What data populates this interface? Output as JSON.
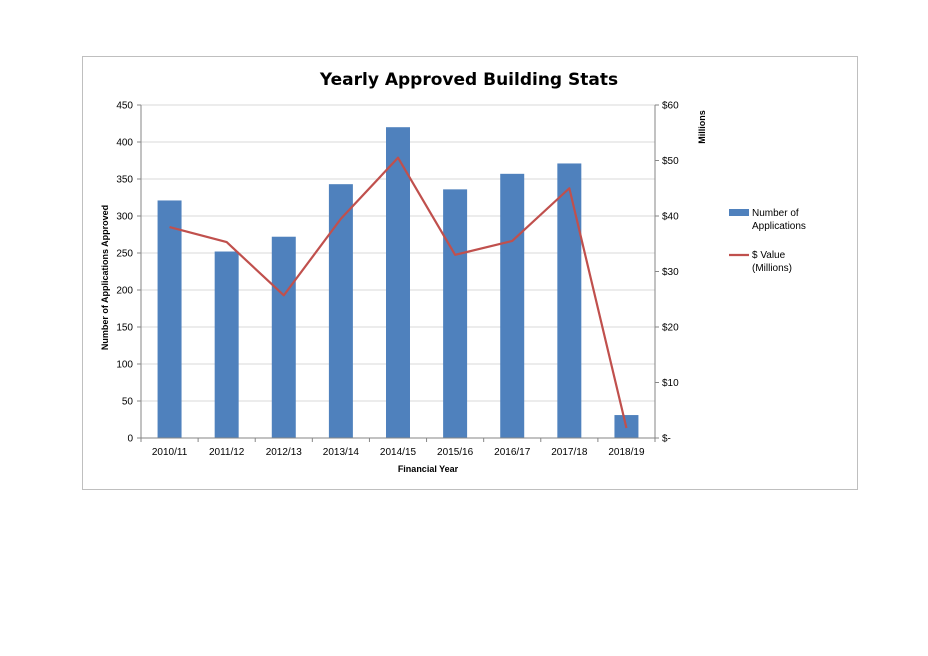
{
  "chart_data": {
    "type": "bar",
    "title": "Yearly Approved Building Stats",
    "xlabel": "Financial  Year",
    "ylabel": "Number of Applications Approved",
    "y2label": "Millions",
    "categories": [
      "2010/11",
      "2011/12",
      "2012/13",
      "2013/14",
      "2014/15",
      "2015/16",
      "2016/17",
      "2017/18",
      "2018/19"
    ],
    "ylim": [
      0,
      450
    ],
    "yticks": [
      "0",
      "50",
      "100",
      "150",
      "200",
      "250",
      "300",
      "350",
      "400",
      "450"
    ],
    "y2lim": [
      0,
      60
    ],
    "y2ticks": [
      "$-",
      "$10",
      "$20",
      "$30",
      "$40",
      "$50",
      "$60"
    ],
    "grid": true,
    "legend_position": "right",
    "series": [
      {
        "name": "Number of Applications",
        "type": "bar",
        "axis": "left",
        "color": "#4f81bd",
        "values": [
          321,
          252,
          272,
          343,
          420,
          336,
          357,
          371,
          31
        ]
      },
      {
        "name": "$ Value (Millions)",
        "type": "line",
        "axis": "right",
        "color": "#c0504d",
        "values": [
          38.0,
          35.3,
          25.7,
          39.5,
          50.5,
          33.0,
          35.5,
          45.0,
          1.8
        ]
      }
    ],
    "legend": {
      "bar_label_lines": [
        "Number of",
        "Applications"
      ],
      "line_label_lines": [
        "$ Value",
        "(Millions)"
      ]
    }
  }
}
